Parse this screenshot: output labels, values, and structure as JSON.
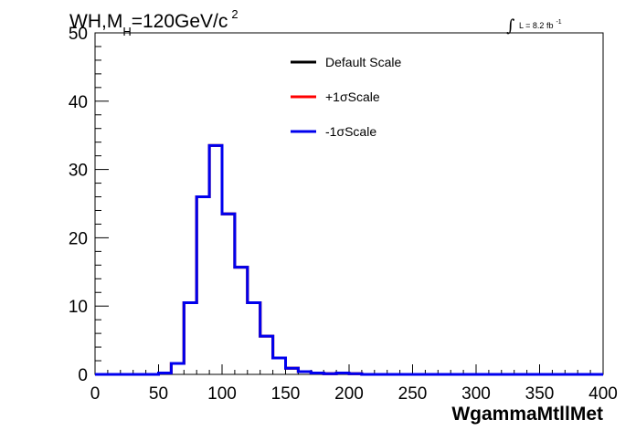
{
  "chart_data": {
    "type": "line",
    "title": {
      "main": "WH,M",
      "subscript": "H",
      "rest": "=120GeV/c",
      "superscript": "2"
    },
    "xlabel": "WgammaMtllMet",
    "ylabel": "",
    "xlim": [
      0,
      400
    ],
    "ylim": [
      0,
      50
    ],
    "x_ticks": [
      "0",
      "50",
      "100",
      "150",
      "200",
      "250",
      "300",
      "350",
      "400"
    ],
    "y_ticks": [
      "0",
      "10",
      "20",
      "30",
      "40",
      "50"
    ],
    "grid": false,
    "legend_position": "top-center",
    "luminosity": {
      "prefix": "L = 8.2 fb",
      "superscript": "-1"
    },
    "bin_width": 10,
    "bin_edges_start": 0,
    "series": [
      {
        "name": "Default Scale",
        "color": "#000000",
        "values": [
          0,
          0,
          0,
          0,
          0,
          0.2,
          1.6,
          10.5,
          26,
          33.5,
          23.5,
          15.7,
          10.5,
          5.6,
          2.4,
          0.9,
          0.4,
          0.2,
          0.1,
          0.2,
          0.1,
          0,
          0,
          0,
          0,
          0,
          0,
          0,
          0,
          0,
          0,
          0,
          0,
          0,
          0,
          0,
          0,
          0,
          0,
          0
        ]
      },
      {
        "name": "+1σScale",
        "color": "#ff0000",
        "values": [
          0,
          0,
          0,
          0,
          0,
          0.2,
          1.6,
          10.5,
          26,
          33.5,
          23.5,
          15.7,
          10.5,
          5.6,
          2.4,
          0.9,
          0.4,
          0.2,
          0.1,
          0.2,
          0.1,
          0,
          0,
          0,
          0,
          0,
          0,
          0,
          0,
          0,
          0,
          0,
          0,
          0,
          0,
          0,
          0,
          0,
          0,
          0
        ]
      },
      {
        "name": "-1σScale",
        "color": "#0000ee",
        "values": [
          0,
          0,
          0,
          0,
          0,
          0.2,
          1.6,
          10.5,
          26,
          33.5,
          23.5,
          15.7,
          10.5,
          5.6,
          2.4,
          0.9,
          0.4,
          0.2,
          0.1,
          0.2,
          0.1,
          0,
          0,
          0,
          0,
          0,
          0,
          0,
          0,
          0,
          0,
          0,
          0,
          0,
          0,
          0,
          0,
          0,
          0,
          0
        ]
      }
    ]
  }
}
